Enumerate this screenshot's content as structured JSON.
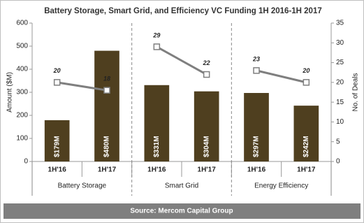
{
  "chart_data": {
    "type": "bar",
    "title": "Battery Storage, Smart Grid, and Efficiency VC Funding 1H 2016-1H 2017",
    "ylabel": "Amount ($M)",
    "y2label": "No. of Deals",
    "categories": [
      "1H'16",
      "1H'17",
      "1H'16",
      "1H'17",
      "1H'16",
      "1H'17"
    ],
    "groups": [
      "Battery Storage",
      "Smart Grid",
      "Energy Efficiency"
    ],
    "series": [
      {
        "type": "bar",
        "color": "#4f3f1f",
        "values": [
          179,
          480,
          331,
          304,
          297,
          242
        ],
        "value_labels": [
          "$179M",
          "$480M",
          "$331M",
          "$304M",
          "$297M",
          "$242M"
        ]
      },
      {
        "type": "line",
        "axis": "y2",
        "color": "#7f7f7f",
        "values": [
          20,
          18,
          29,
          22,
          23,
          20
        ]
      }
    ],
    "ylim": [
      0,
      600
    ],
    "yticks": [
      0,
      100,
      200,
      300,
      400,
      500,
      600
    ],
    "y2lim": [
      0,
      35
    ],
    "y2ticks": [
      0,
      5,
      10,
      15,
      20,
      25,
      30,
      35
    ],
    "source": "Source: Mercom Capital Group"
  }
}
